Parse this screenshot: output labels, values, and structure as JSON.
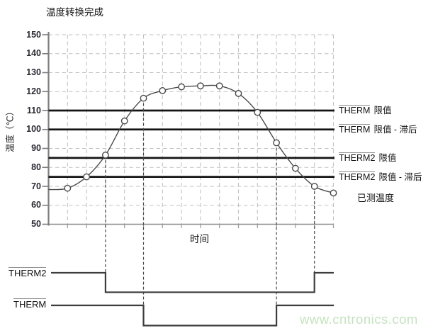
{
  "watermark": "www.cntronics.com",
  "chart_data": {
    "type": "line",
    "title": "温度转换完成",
    "xlabel": "时间",
    "ylabel": "温度（℃）",
    "ylim": [
      50,
      150
    ],
    "yticks": [
      150,
      140,
      130,
      120,
      110,
      100,
      90,
      80,
      70,
      60,
      50
    ],
    "grid": true,
    "x": [
      1,
      2,
      3,
      4,
      5,
      6,
      7,
      8,
      9,
      10,
      11,
      12,
      13,
      14,
      15
    ],
    "series": [
      {
        "name": "已测温度",
        "marker": "open-circle",
        "values": [
          69,
          75,
          86.5,
          104.5,
          116.5,
          120.5,
          122.5,
          123,
          123,
          119,
          109,
          93,
          79.5,
          70,
          66.5
        ]
      }
    ],
    "curve_start_value": 68.3,
    "measured_label": "已测温度",
    "limit_lines": [
      {
        "name": "THERM",
        "suffix": "限值",
        "value": 110
      },
      {
        "name": "THERM",
        "suffix": "限值 - 滞后",
        "value": 100
      },
      {
        "name": "THERM2",
        "suffix": "限值",
        "value": 85
      },
      {
        "name": "THERM2",
        "suffix": "限值 - 滞后",
        "value": 75
      }
    ],
    "signals": [
      {
        "name": "THERM2",
        "initial_level": "high",
        "fall_at_sample": 3,
        "rise_at_sample": 14
      },
      {
        "name": "THERM",
        "initial_level": "high",
        "fall_at_sample": 5,
        "rise_at_sample": 12
      }
    ],
    "colors": {
      "curve": "#4a4a4a",
      "limit_line": "#141414",
      "grid": "#c2c2c2",
      "axis": "#7d7d7d",
      "signal": "#3d3d3d",
      "connector": "#4a4a4a",
      "watermark": "#c5e3bf"
    }
  }
}
